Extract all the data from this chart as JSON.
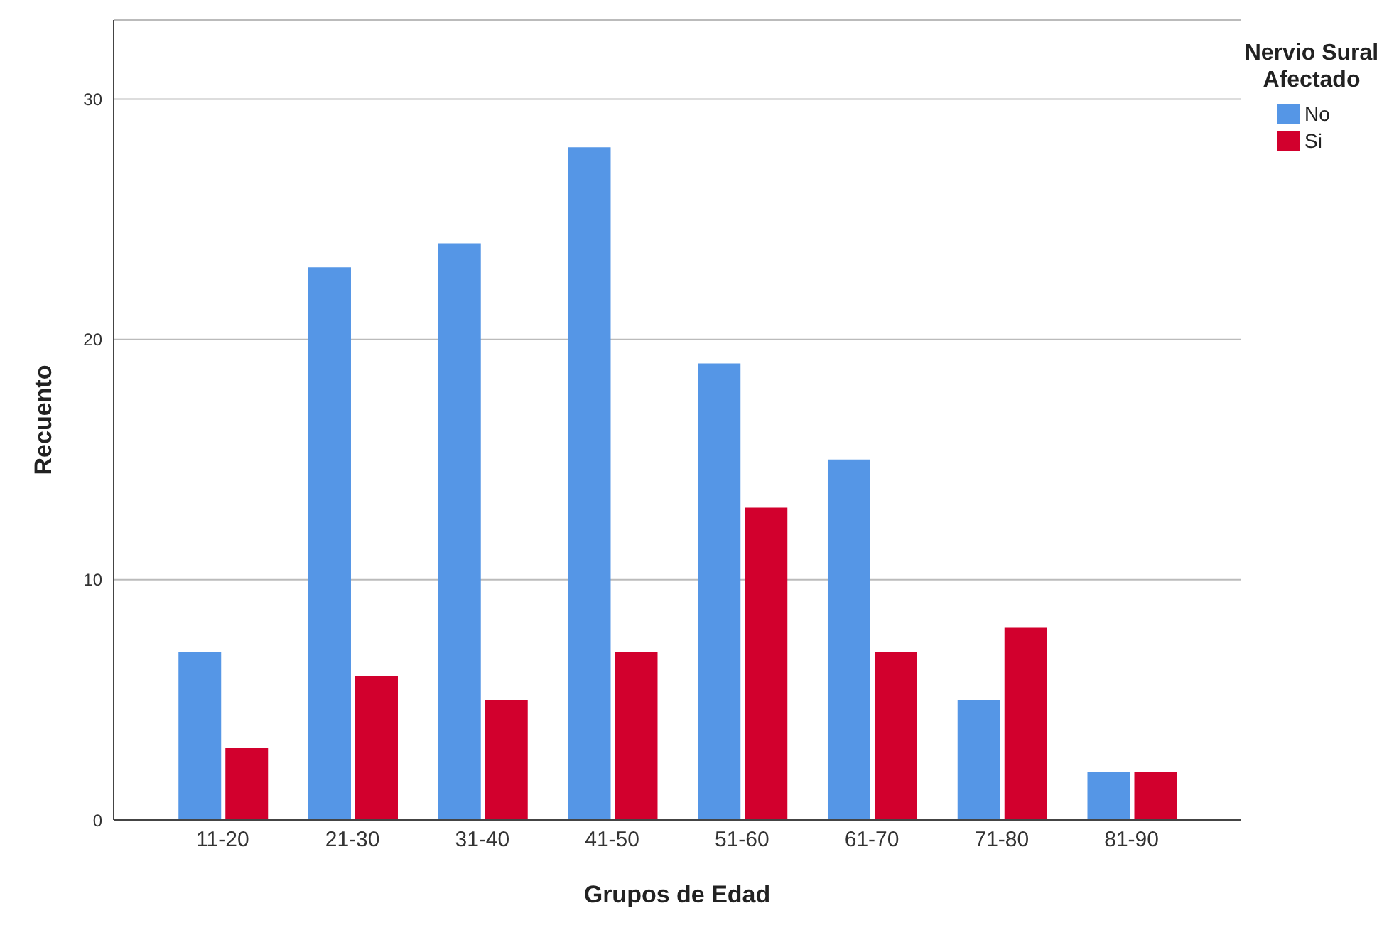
{
  "chart_data": {
    "type": "bar",
    "xlabel": "Grupos de Edad",
    "ylabel": "Recuento",
    "legend_title": "Nervio Sural Afectado",
    "categories": [
      "11-20",
      "21-30",
      "31-40",
      "41-50",
      "51-60",
      "61-70",
      "71-80",
      "81-90"
    ],
    "series": [
      {
        "name": "No",
        "color": "#5596e6",
        "values": [
          7,
          23,
          24,
          28,
          19,
          15,
          5,
          2
        ]
      },
      {
        "name": "Si",
        "color": "#d2002d",
        "values": [
          3,
          6,
          5,
          7,
          13,
          7,
          8,
          2
        ]
      }
    ],
    "ylim": [
      0,
      33.3
    ],
    "yticks": [
      0,
      10,
      20,
      30
    ],
    "grid": "y",
    "legend": "top right"
  }
}
